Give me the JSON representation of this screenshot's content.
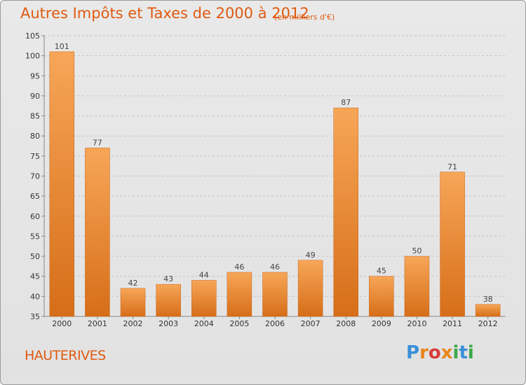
{
  "header": {
    "title": "Autres Impôts et Taxes de 2000 à 2012",
    "subtitle": "(en milliers d'€)"
  },
  "location": "HAUTERIVES",
  "logo": {
    "text": "Proxiti",
    "colors": [
      "#3a8fd8",
      "#e8861a",
      "#d83a3a",
      "#e8861a",
      "#3aa84a",
      "#3a8fd8",
      "#3aa84a"
    ]
  },
  "chart_data": {
    "type": "bar",
    "title": "Autres Impôts et Taxes de 2000 à 2012",
    "subtitle": "(en milliers d'€)",
    "categories": [
      "2000",
      "2001",
      "2002",
      "2003",
      "2004",
      "2005",
      "2006",
      "2007",
      "2008",
      "2009",
      "2010",
      "2011",
      "2012"
    ],
    "values": [
      101,
      77,
      42,
      43,
      44,
      46,
      46,
      49,
      87,
      45,
      50,
      71,
      38
    ],
    "ylim": [
      35,
      105
    ],
    "yticks": [
      35,
      40,
      45,
      50,
      55,
      60,
      65,
      70,
      75,
      80,
      85,
      90,
      95,
      100,
      105
    ],
    "grid": true,
    "bar_color_top": "#f7a658",
    "bar_color_bottom": "#d66e18",
    "label_color": "#444444"
  }
}
